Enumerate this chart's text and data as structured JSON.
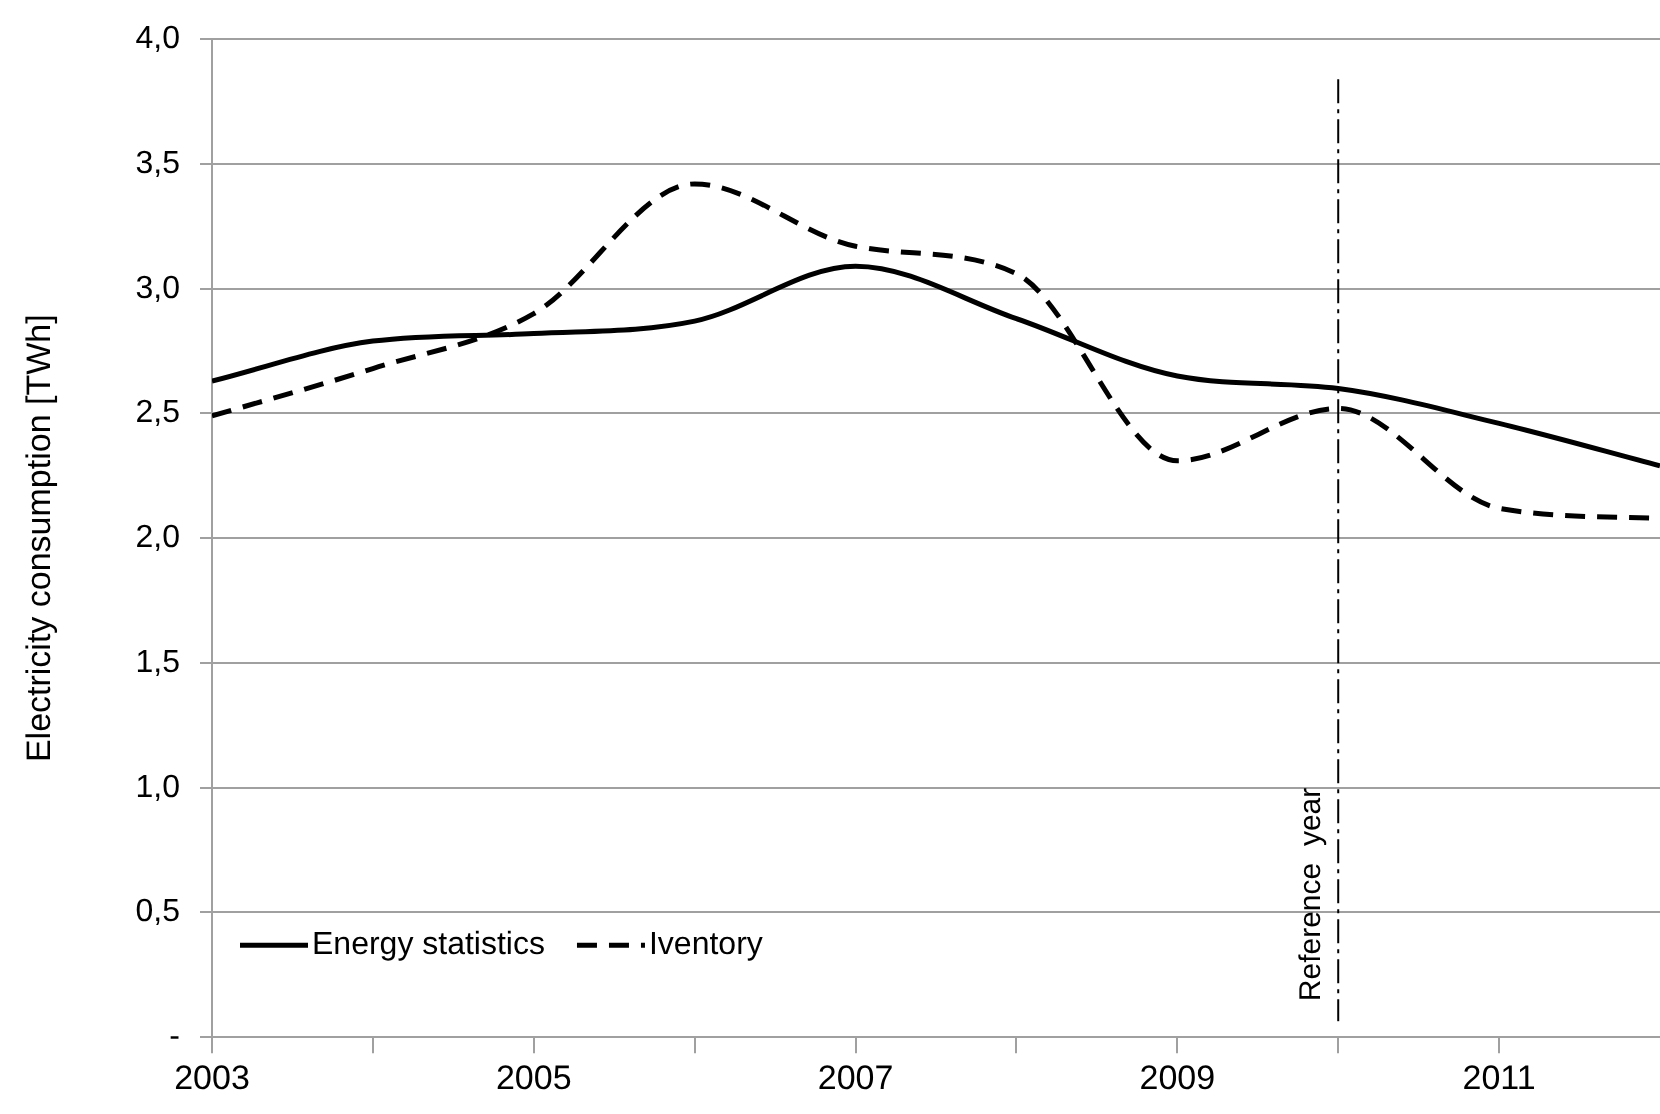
{
  "chart_data": {
    "type": "line",
    "ylabel": "Electricity consumption [TWh]",
    "x": [
      2003,
      2004,
      2005,
      2006,
      2007,
      2008,
      2009,
      2010,
      2011,
      2012
    ],
    "series": [
      {
        "name": "Energy statistics",
        "color": "#000000",
        "line_style": "solid",
        "values": [
          2.63,
          2.79,
          2.82,
          2.87,
          3.09,
          2.88,
          2.65,
          2.6,
          2.46,
          2.29
        ]
      },
      {
        "name": "Iventory",
        "color": "#000000",
        "line_style": "dashed",
        "values": [
          2.49,
          2.68,
          2.9,
          3.42,
          3.17,
          3.06,
          2.31,
          2.52,
          2.12,
          2.08
        ]
      }
    ],
    "xlim": [
      2003,
      2012
    ],
    "xticks": [
      2003,
      {
        "value": 2004,
        "label": null
      },
      2005,
      {
        "value": 2006,
        "label": null
      },
      2007,
      {
        "value": 2008,
        "label": null
      },
      2009,
      {
        "value": 2010,
        "label": null
      },
      2011
    ],
    "ylim": [
      0,
      4
    ],
    "yticks": [
      {
        "value": 0,
        "label": "-"
      },
      {
        "value": 0.5,
        "label": "0,5"
      },
      {
        "value": 1,
        "label": "1,0"
      },
      {
        "value": 1.5,
        "label": "1,5"
      },
      {
        "value": 2,
        "label": "2,0"
      },
      {
        "value": 2.5,
        "label": "2,5"
      },
      {
        "value": 3,
        "label": "3,0"
      },
      {
        "value": 3.5,
        "label": "3,5"
      },
      {
        "value": 4,
        "label": "4,0"
      }
    ],
    "grid": "y",
    "legend": "bottom left",
    "marker": "none",
    "ref_lines": [
      {
        "axis": "x",
        "value": 2010,
        "label": "Reference  year",
        "line_style": "dashed",
        "color": "#000000"
      }
    ]
  }
}
